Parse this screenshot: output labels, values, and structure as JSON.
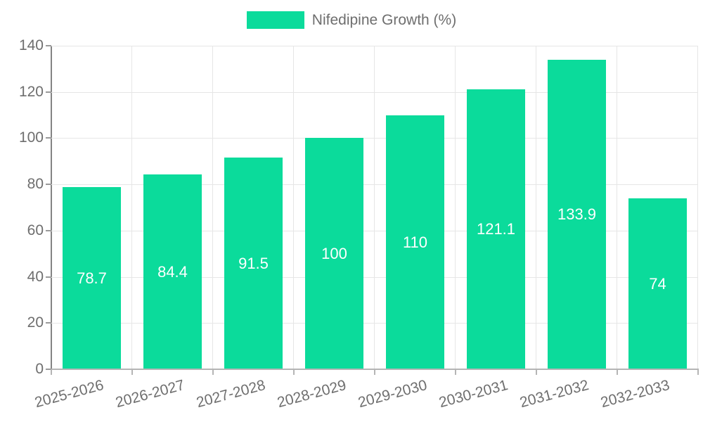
{
  "legend": {
    "label": "Nifedipine Growth (%)"
  },
  "chart_data": {
    "type": "bar",
    "title": "Nifedipine Growth (%)",
    "legend_label": "Nifedipine Growth (%)",
    "legend_position": "top",
    "categories": [
      "2025-2026",
      "2026-2027",
      "2027-2028",
      "2028-2029",
      "2029-2030",
      "2030-2031",
      "2031-2032",
      "2032-2033"
    ],
    "values": [
      78.7,
      84.4,
      91.5,
      100,
      110,
      121.1,
      133.9,
      74
    ],
    "xlabel": "",
    "ylabel": "",
    "ylim": [
      0,
      140
    ],
    "ytick_step": 20,
    "yticks": [
      0,
      20,
      40,
      60,
      80,
      100,
      120,
      140
    ],
    "grid": true,
    "value_labels_inside_bars": true,
    "bar_color": "#0bdb9b",
    "value_label_color": "#ffffff",
    "axis_text_color": "#6e6e6e"
  }
}
